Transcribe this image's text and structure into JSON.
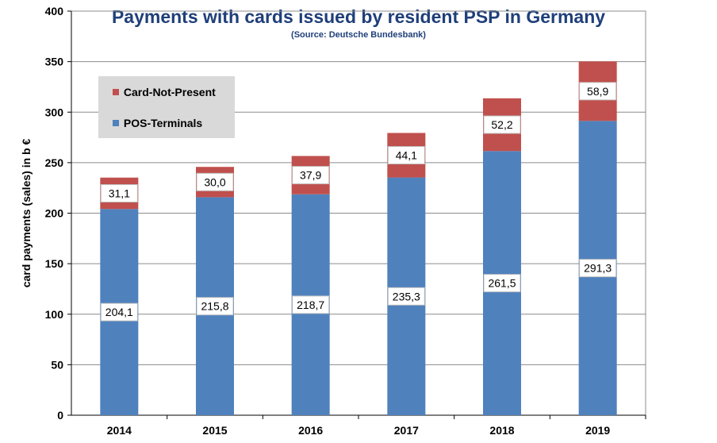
{
  "header": {
    "title": "Payments with cards issued by resident PSP in Germany",
    "subtitle": "(Source: Deutsche Bundesbank)"
  },
  "colors": {
    "pos": "#4f81bd",
    "cnp": "#c0504d",
    "legend_bg": "#d9d9d9",
    "title": "#1f3f7a"
  },
  "chart_data": {
    "type": "bar",
    "stacked": true,
    "title": "Payments with cards issued by resident PSP in Germany",
    "subtitle": "(Source: Deutsche Bundesbank)",
    "xlabel": "",
    "ylabel": "card payments (sales) in b €",
    "ylim": [
      0,
      400
    ],
    "yticks": [
      0,
      50,
      100,
      150,
      200,
      250,
      300,
      350,
      400
    ],
    "categories": [
      "2014",
      "2015",
      "2016",
      "2017",
      "2018",
      "2019"
    ],
    "series": [
      {
        "name": "POS-Terminals",
        "values": [
          204.1,
          215.8,
          218.7,
          235.3,
          261.5,
          291.3
        ],
        "labels": [
          "204,1",
          "215,8",
          "218,7",
          "235,3",
          "261,5",
          "291,3"
        ]
      },
      {
        "name": "Card-Not-Present",
        "values": [
          31.1,
          30.0,
          37.9,
          44.1,
          52.2,
          58.9
        ],
        "labels": [
          "31,1",
          "30,0",
          "37,9",
          "44,1",
          "52,2",
          "58,9"
        ]
      }
    ],
    "grid": true,
    "legend_position": "top-left"
  }
}
